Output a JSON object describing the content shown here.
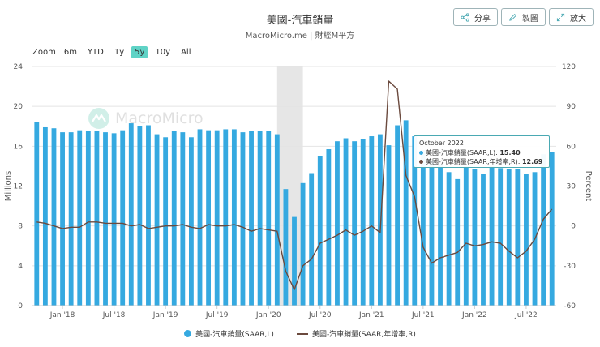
{
  "title": "美國-汽車銷量",
  "subtitle": "MacroMicro.me | 財經M平方",
  "toolbar": {
    "share_label": "分享",
    "chart_label": "製圖",
    "expand_label": "放大"
  },
  "zoom": {
    "label": "Zoom",
    "options": [
      "6m",
      "YTD",
      "1y",
      "5y",
      "10y",
      "All"
    ],
    "active": "5y"
  },
  "watermark": "MacroMicro",
  "tooltip": {
    "title": "October 2022",
    "row1_label": "美國-汽車銷量(SAAR,L): ",
    "row1_value": "15.40",
    "row2_label": "美國-汽車銷量(SAAR,年增率,R): ",
    "row2_value": "12.69"
  },
  "colors": {
    "bar": "#35a9e0",
    "line": "#6b4a3e",
    "active_zoom": "#5fd3c6",
    "recession_shade": "#e6e6e6"
  },
  "chart_data": {
    "type": "bar",
    "left_axis_label": "Millions",
    "right_axis_label": "Percent",
    "left_ylim": [
      0,
      24
    ],
    "right_ylim": [
      -60,
      120
    ],
    "left_ticks": [
      "0",
      "4",
      "8",
      "12",
      "16",
      "20",
      "24"
    ],
    "right_ticks": [
      "-60",
      "-30",
      "0",
      "30",
      "60",
      "90",
      "120"
    ],
    "x_tick_labels": [
      {
        "label": "Jan '18",
        "index": 3
      },
      {
        "label": "Jul '18",
        "index": 9
      },
      {
        "label": "Jan '19",
        "index": 15
      },
      {
        "label": "Jul '19",
        "index": 21
      },
      {
        "label": "Jan '20",
        "index": 27
      },
      {
        "label": "Jul '20",
        "index": 33
      },
      {
        "label": "Jan '21",
        "index": 39
      },
      {
        "label": "Jul '21",
        "index": 45
      },
      {
        "label": "Jan '22",
        "index": 51
      },
      {
        "label": "Jul '22",
        "index": 57
      }
    ],
    "recession_shade": {
      "from_index": 28.5,
      "to_index": 31.5
    },
    "months": [
      "Oct 2017",
      "Nov 2017",
      "Dec 2017",
      "Jan 2018",
      "Feb 2018",
      "Mar 2018",
      "Apr 2018",
      "May 2018",
      "Jun 2018",
      "Jul 2018",
      "Aug 2018",
      "Sep 2018",
      "Oct 2018",
      "Nov 2018",
      "Dec 2018",
      "Jan 2019",
      "Feb 2019",
      "Mar 2019",
      "Apr 2019",
      "May 2019",
      "Jun 2019",
      "Jul 2019",
      "Aug 2019",
      "Sep 2019",
      "Oct 2019",
      "Nov 2019",
      "Dec 2019",
      "Jan 2020",
      "Feb 2020",
      "Mar 2020",
      "Apr 2020",
      "May 2020",
      "Jun 2020",
      "Jul 2020",
      "Aug 2020",
      "Sep 2020",
      "Oct 2020",
      "Nov 2020",
      "Dec 2020",
      "Jan 2021",
      "Feb 2021",
      "Mar 2021",
      "Apr 2021",
      "May 2021",
      "Jun 2021",
      "Jul 2021",
      "Aug 2021",
      "Sep 2021",
      "Oct 2021",
      "Nov 2021",
      "Dec 2021",
      "Jan 2022",
      "Feb 2022",
      "Mar 2022",
      "Apr 2022",
      "May 2022",
      "Jun 2022",
      "Jul 2022",
      "Aug 2022",
      "Sep 2022",
      "Oct 2022"
    ],
    "series": [
      {
        "name": "美國-汽車銷量(SAAR,L)",
        "axis": "left",
        "type": "bar",
        "values": [
          18.4,
          17.9,
          17.8,
          17.4,
          17.4,
          17.6,
          17.5,
          17.5,
          17.4,
          17.3,
          17.6,
          18.3,
          18.0,
          18.1,
          17.2,
          16.9,
          17.5,
          17.4,
          16.9,
          17.7,
          17.6,
          17.6,
          17.7,
          17.7,
          17.4,
          17.5,
          17.5,
          17.5,
          17.2,
          11.7,
          8.9,
          12.3,
          13.3,
          15.0,
          15.7,
          16.5,
          16.8,
          16.5,
          16.7,
          17.0,
          17.2,
          16.1,
          18.1,
          18.6,
          17.0,
          15.6,
          14.6,
          14.2,
          13.4,
          12.7,
          14.0,
          13.7,
          13.2,
          14.0,
          13.8,
          13.7,
          13.7,
          13.2,
          13.4,
          15.2,
          15.4
        ]
      },
      {
        "name": "美國-汽車銷量(SAAR,年增率,R)",
        "axis": "right",
        "type": "line",
        "values": [
          3,
          2,
          0,
          -2,
          -1,
          -1,
          3,
          3,
          2,
          2,
          2,
          0,
          1,
          -2,
          -1,
          0,
          0,
          1,
          -1,
          -2,
          1,
          0,
          0,
          1,
          -1,
          -4,
          -2,
          -3,
          -4,
          -34,
          -48,
          -30,
          -25,
          -13,
          -10,
          -7,
          -3,
          -7,
          -4,
          0,
          -5,
          109,
          103,
          38,
          22,
          -16,
          -28,
          -24,
          -22,
          -20,
          -13,
          -15,
          -14,
          -12,
          -13,
          -19,
          -24,
          -19,
          -10,
          5,
          12.69
        ]
      }
    ]
  },
  "legend": {
    "bar_label": "美國-汽車銷量(SAAR,L)",
    "line_label": "美國-汽車銷量(SAAR,年增率,R)"
  }
}
